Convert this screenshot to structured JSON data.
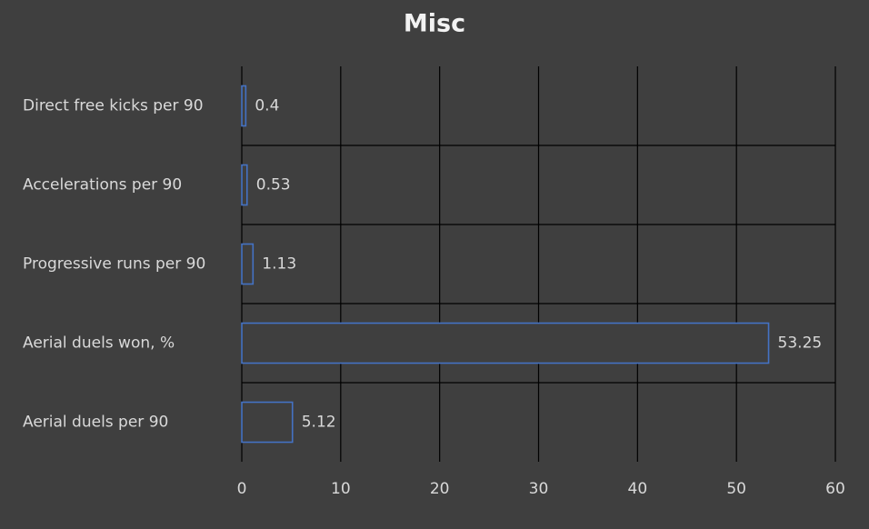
{
  "chart_data": {
    "type": "bar",
    "orientation": "horizontal",
    "title": "Misc",
    "categories": [
      "Direct free kicks per 90",
      "Accelerations per 90",
      "Progressive runs per 90",
      "Aerial duels won, %",
      "Aerial duels per 90"
    ],
    "values": [
      0.4,
      0.53,
      1.13,
      53.25,
      5.12
    ],
    "color": "#4472c4",
    "xlim": [
      0,
      60
    ],
    "xticks": [
      0,
      10,
      20,
      30,
      40,
      50,
      60
    ],
    "grid": true
  }
}
